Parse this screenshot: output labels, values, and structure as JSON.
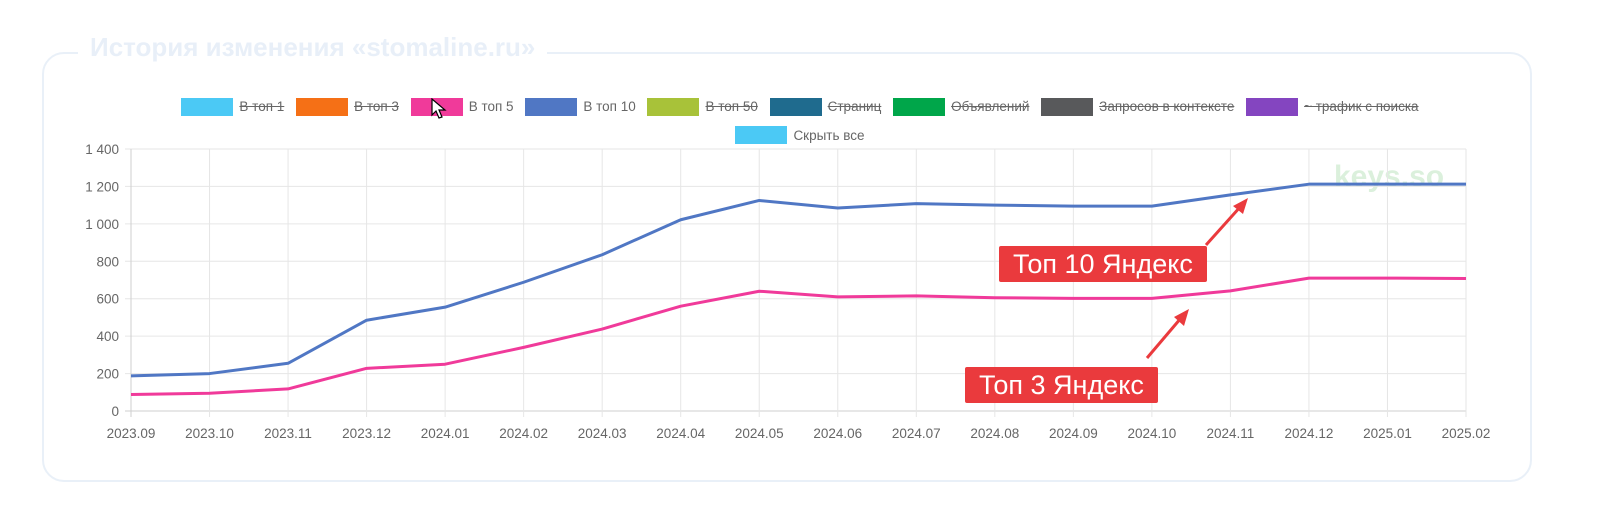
{
  "panel": {
    "title": "История изменения «stomaline.ru»"
  },
  "watermark": "keys.so",
  "legend": [
    {
      "label": "В топ 1",
      "color": "#4bc9f5",
      "hidden": true
    },
    {
      "label": "В топ 3",
      "color": "#f57016",
      "hidden": true
    },
    {
      "label": "В топ 5",
      "color": "#f03a9a",
      "hidden": false
    },
    {
      "label": "В топ 10",
      "color": "#5077c4",
      "hidden": false
    },
    {
      "label": "В топ 50",
      "color": "#a8c239",
      "hidden": true
    },
    {
      "label": "Страниц",
      "color": "#1f6b8e",
      "hidden": true
    },
    {
      "label": "Объявлений",
      "color": "#00a64a",
      "hidden": true
    },
    {
      "label": "Запросов в контексте",
      "color": "#58595b",
      "hidden": true
    },
    {
      "label": "~ трафик с поиска",
      "color": "#8445c0",
      "hidden": true
    },
    {
      "label": "Скрыть все",
      "color": "#4bc9f5",
      "hidden": false
    }
  ],
  "chart_data": {
    "type": "line",
    "title": "История изменения «stomaline.ru»",
    "x": [
      "2023.09",
      "2023.10",
      "2023.11",
      "2023.12",
      "2024.01",
      "2024.02",
      "2024.03",
      "2024.04",
      "2024.05",
      "2024.06",
      "2024.07",
      "2024.08",
      "2024.09",
      "2024.10",
      "2024.11",
      "2024.12",
      "2025.01",
      "2025.02"
    ],
    "yticks": [
      "0",
      "200",
      "400",
      "600",
      "800",
      "1 000",
      "1 200",
      "1 400"
    ],
    "ylim": [
      0,
      1400
    ],
    "grid": true,
    "legend_position": "top",
    "series": [
      {
        "name": "В топ 10",
        "color": "#5077c4",
        "values": [
          188,
          200,
          255,
          485,
          555,
          688,
          835,
          1022,
          1125,
          1085,
          1108,
          1100,
          1095,
          1095,
          1155,
          1212,
          1212,
          1212
        ]
      },
      {
        "name": "В топ 5",
        "color": "#f03a9a",
        "values": [
          88,
          95,
          118,
          228,
          250,
          340,
          438,
          560,
          640,
          610,
          615,
          605,
          602,
          602,
          642,
          710,
          710,
          708
        ]
      }
    ],
    "annotations": [
      {
        "text": "Топ 10 Яндекс",
        "color": "#ea3a3d"
      },
      {
        "text": "Топ 3 Яндекс",
        "color": "#ea3a3d"
      }
    ]
  }
}
